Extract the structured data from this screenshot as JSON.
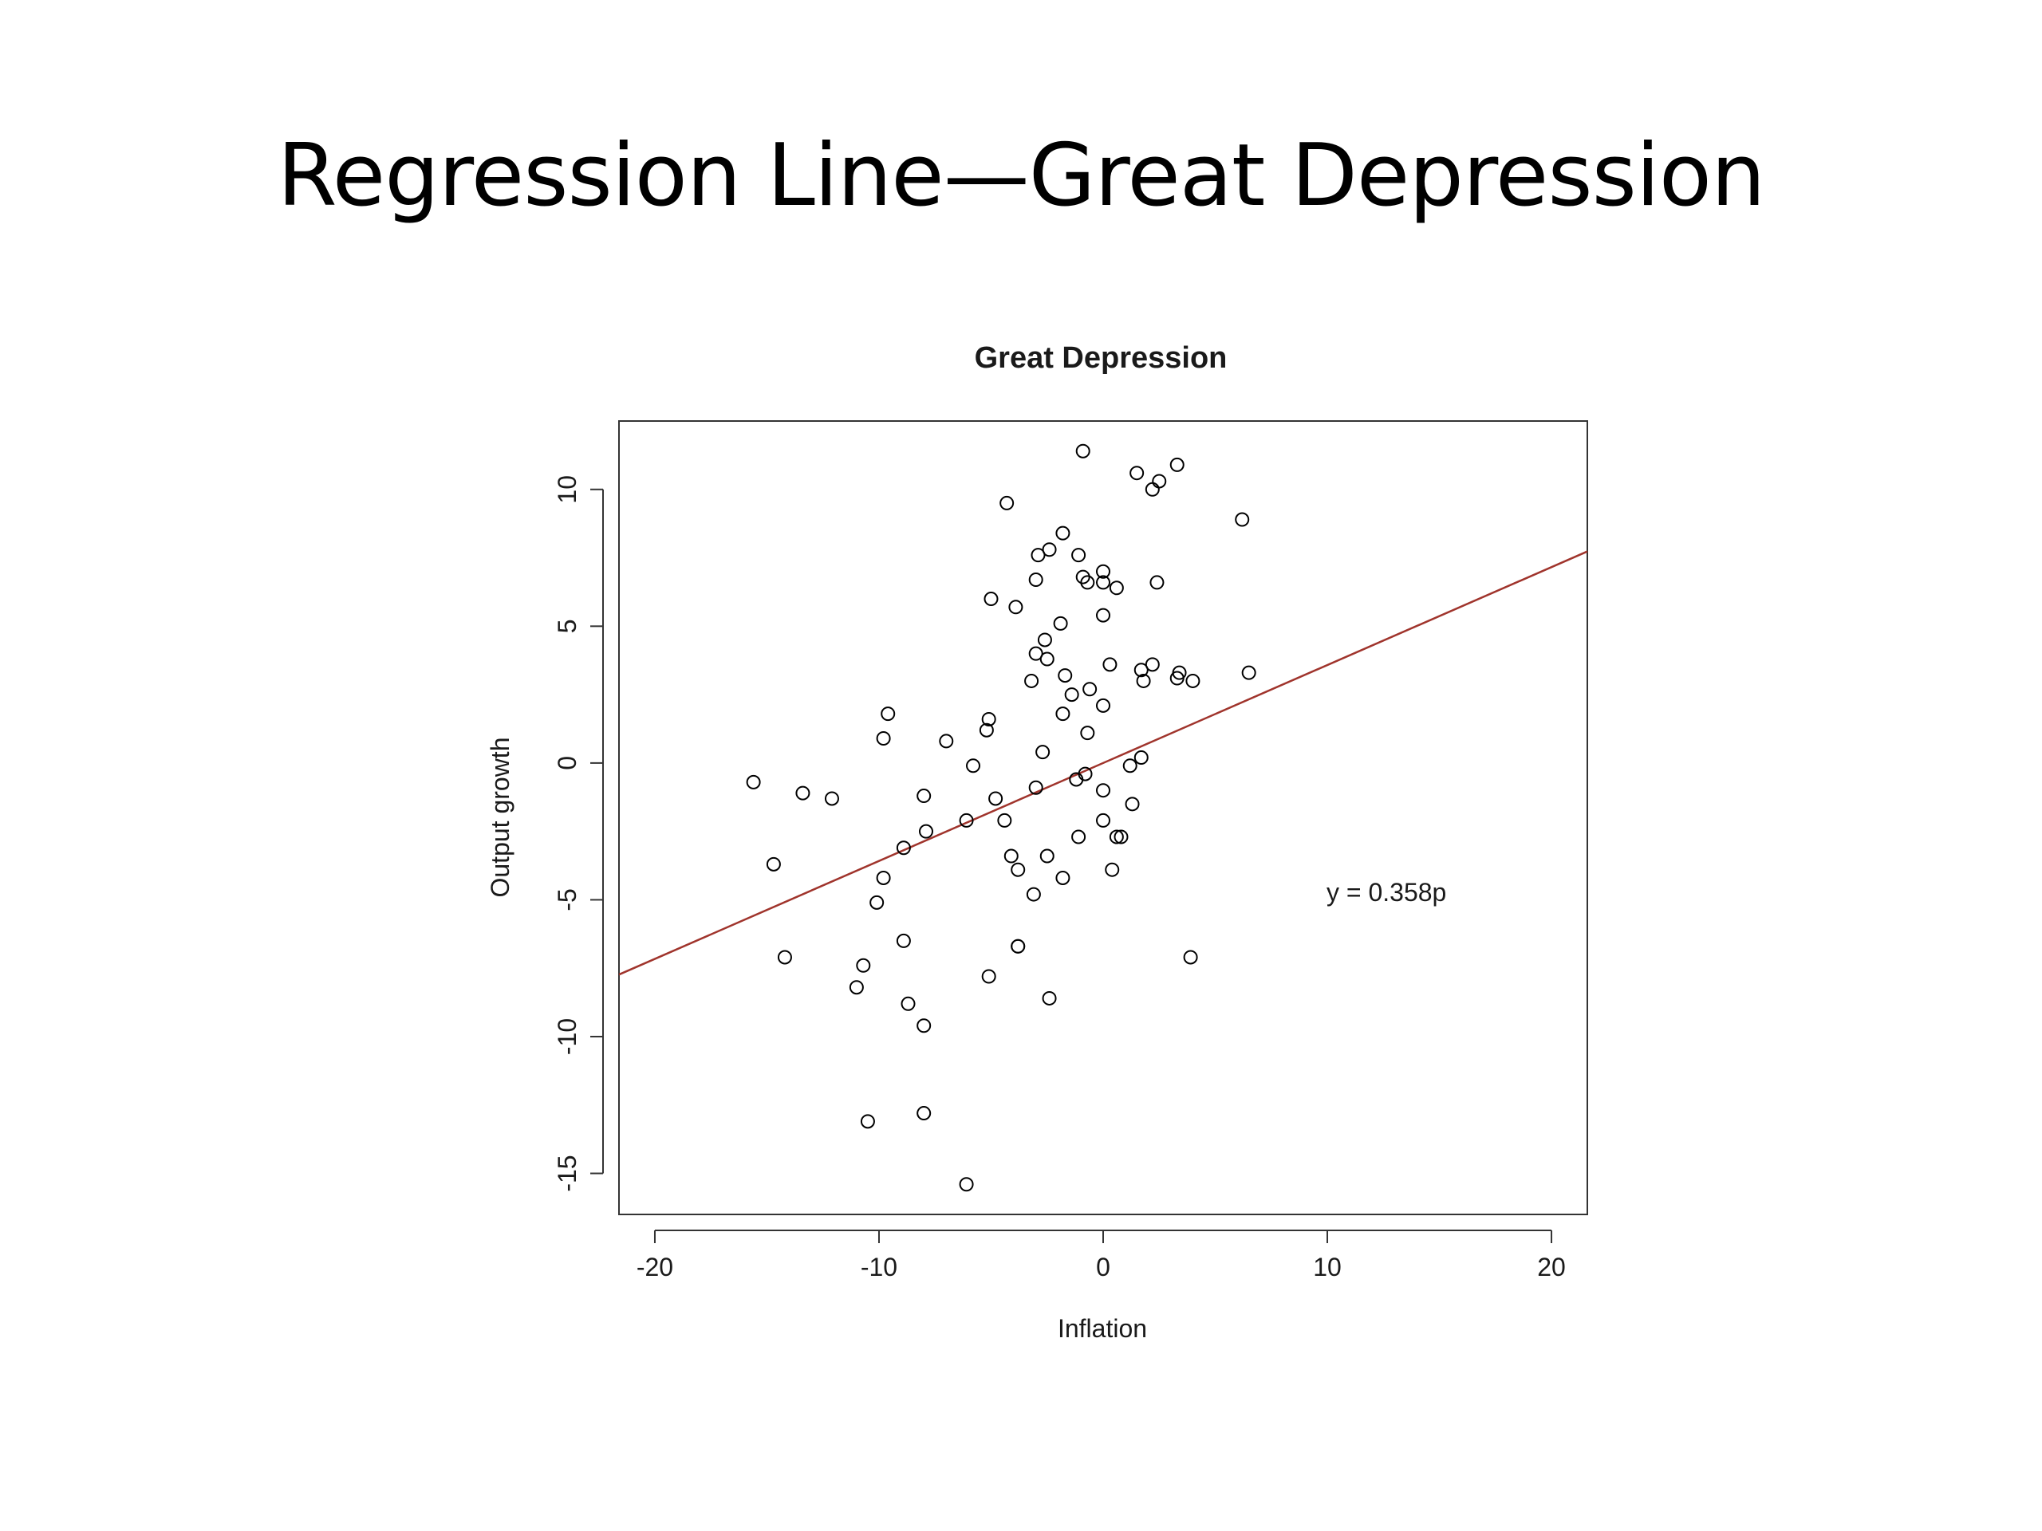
{
  "slide": {
    "title": "Regression Line—Great Depression"
  },
  "chart_data": {
    "type": "scatter",
    "title": "Great Depression",
    "xlabel": "Inflation",
    "ylabel": "Output growth",
    "xlim": [
      -21.6,
      21.6
    ],
    "ylim": [
      -16.5,
      12.5
    ],
    "x_ticks": [
      -20,
      -10,
      0,
      10,
      20
    ],
    "y_ticks": [
      -15,
      -10,
      -5,
      0,
      5,
      10
    ],
    "x_tick_labels": [
      "-20",
      "-10",
      "0",
      "10",
      "20"
    ],
    "y_tick_labels": [
      "-15",
      "-10",
      "-5",
      "0",
      "5",
      "10"
    ],
    "grid": false,
    "marker": "open-circle",
    "point_color": "#000000",
    "line_color": "#a0342c",
    "regression": {
      "slope": 0.358,
      "intercept": 0,
      "label": "y = 0.358p"
    },
    "points": [
      [
        -0.9,
        11.4
      ],
      [
        1.5,
        10.6
      ],
      [
        3.3,
        10.9
      ],
      [
        2.5,
        10.3
      ],
      [
        2.2,
        10.0
      ],
      [
        6.2,
        8.9
      ],
      [
        -4.3,
        9.5
      ],
      [
        -1.8,
        8.4
      ],
      [
        -2.4,
        7.8
      ],
      [
        -2.9,
        7.6
      ],
      [
        -1.1,
        7.6
      ],
      [
        0.0,
        7.0
      ],
      [
        -3.0,
        6.7
      ],
      [
        -0.9,
        6.8
      ],
      [
        -0.7,
        6.6
      ],
      [
        0.0,
        6.6
      ],
      [
        0.6,
        6.4
      ],
      [
        2.4,
        6.6
      ],
      [
        -5.0,
        6.0
      ],
      [
        -3.9,
        5.7
      ],
      [
        0.0,
        5.4
      ],
      [
        -1.9,
        5.1
      ],
      [
        -2.6,
        4.5
      ],
      [
        -3.0,
        4.0
      ],
      [
        -2.5,
        3.8
      ],
      [
        0.3,
        3.6
      ],
      [
        2.2,
        3.6
      ],
      [
        1.7,
        3.4
      ],
      [
        3.4,
        3.3
      ],
      [
        3.3,
        3.1
      ],
      [
        4.0,
        3.0
      ],
      [
        6.5,
        3.3
      ],
      [
        1.8,
        3.0
      ],
      [
        -1.7,
        3.2
      ],
      [
        -3.2,
        3.0
      ],
      [
        -0.6,
        2.7
      ],
      [
        -1.4,
        2.5
      ],
      [
        0.0,
        2.1
      ],
      [
        -1.8,
        1.8
      ],
      [
        -9.6,
        1.8
      ],
      [
        -5.1,
        1.6
      ],
      [
        -5.2,
        1.2
      ],
      [
        -0.7,
        1.1
      ],
      [
        -9.8,
        0.9
      ],
      [
        -7.0,
        0.8
      ],
      [
        -2.7,
        0.4
      ],
      [
        1.7,
        0.2
      ],
      [
        1.2,
        -0.1
      ],
      [
        -5.8,
        -0.1
      ],
      [
        -15.6,
        -0.7
      ],
      [
        -1.2,
        -0.6
      ],
      [
        -0.8,
        -0.4
      ],
      [
        -3.0,
        -0.9
      ],
      [
        -13.4,
        -1.1
      ],
      [
        -8.0,
        -1.2
      ],
      [
        -12.1,
        -1.3
      ],
      [
        0.0,
        -1.0
      ],
      [
        -4.8,
        -1.3
      ],
      [
        1.3,
        -1.5
      ],
      [
        -6.1,
        -2.1
      ],
      [
        -4.4,
        -2.1
      ],
      [
        0.0,
        -2.1
      ],
      [
        -7.9,
        -2.5
      ],
      [
        -1.1,
        -2.7
      ],
      [
        0.6,
        -2.7
      ],
      [
        0.8,
        -2.7
      ],
      [
        -8.9,
        -3.1
      ],
      [
        -4.1,
        -3.4
      ],
      [
        -2.5,
        -3.4
      ],
      [
        -14.7,
        -3.7
      ],
      [
        -3.8,
        -3.9
      ],
      [
        0.4,
        -3.9
      ],
      [
        -9.8,
        -4.2
      ],
      [
        -1.8,
        -4.2
      ],
      [
        -3.1,
        -4.8
      ],
      [
        -10.1,
        -5.1
      ],
      [
        -3.8,
        -6.7
      ],
      [
        -3.8,
        -6.7
      ],
      [
        -8.9,
        -6.5
      ],
      [
        -14.2,
        -7.1
      ],
      [
        3.9,
        -7.1
      ],
      [
        -10.7,
        -7.4
      ],
      [
        -5.1,
        -7.8
      ],
      [
        -11.0,
        -8.2
      ],
      [
        -2.4,
        -8.6
      ],
      [
        -8.7,
        -8.8
      ],
      [
        -8.0,
        -9.6
      ],
      [
        -8.0,
        -12.8
      ],
      [
        -10.5,
        -13.1
      ],
      [
        -6.1,
        -15.4
      ]
    ]
  }
}
